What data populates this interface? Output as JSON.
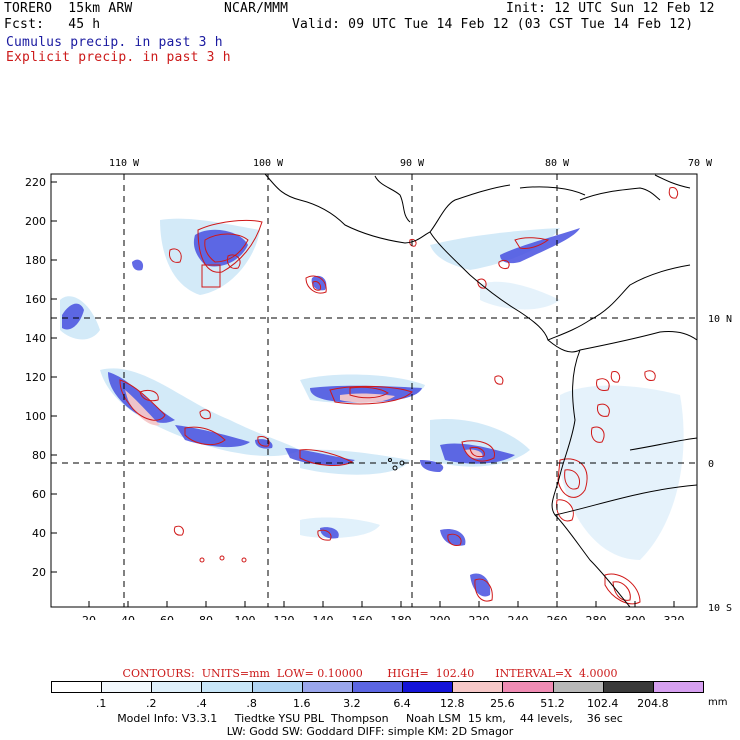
{
  "header": {
    "model": "TORERO  15km ARW",
    "org": "NCAR/MMM",
    "init": "Init: 12 UTC Sun 12 Feb 12",
    "fcst": "Fcst:   45 h",
    "valid": "Valid: 09 UTC Tue 14 Feb 12 (03 CST Tue 14 Feb 12)",
    "legend_cumulus": "Cumulus precip. in past 3 h",
    "legend_explicit": "Explicit precip. in past 3 h"
  },
  "map": {
    "top_lon_labels": [
      "110 W",
      "100 W",
      "90 W",
      "80 W",
      "70 W"
    ],
    "left_y_ticks": [
      "220",
      "200",
      "180",
      "160",
      "140",
      "120",
      "100",
      "80",
      "60",
      "40",
      "20"
    ],
    "bottom_x_ticks": [
      "20",
      "40",
      "60",
      "80",
      "100",
      "120",
      "140",
      "160",
      "180",
      "200",
      "220",
      "240",
      "260",
      "280",
      "300",
      "320"
    ],
    "right_lat_labels": [
      "10 N",
      "0",
      "10 S"
    ]
  },
  "contours_info": "CONTOURS:  UNITS=mm  LOW= 0.10000       HIGH=  102.40      INTERVAL=X  4.0000",
  "colorbar": {
    "labels": [
      ".1",
      ".2",
      ".4",
      ".8",
      "1.6",
      "3.2",
      "6.4",
      "12.8",
      "25.6",
      "51.2",
      "102.4",
      "204.8"
    ],
    "colors": [
      "#ffffff",
      "#f2f8fd",
      "#dff0fb",
      "#c8e6f8",
      "#b0d4f3",
      "#9aa6ec",
      "#5c66e3",
      "#1414d8",
      "#f6c8c8",
      "#f08cb4",
      "#b8b8b8",
      "#3a3a3a",
      "#d6a0f0"
    ],
    "unit": "mm"
  },
  "footer": {
    "line1": "Model Info: V3.3.1     Tiedtke YSU PBL  Thompson     Noah LSM  15 km,    44 levels,    36 sec",
    "line2": "LW: Godd SW: Goddard DIFF: simple KM: 2D Smagor"
  }
}
